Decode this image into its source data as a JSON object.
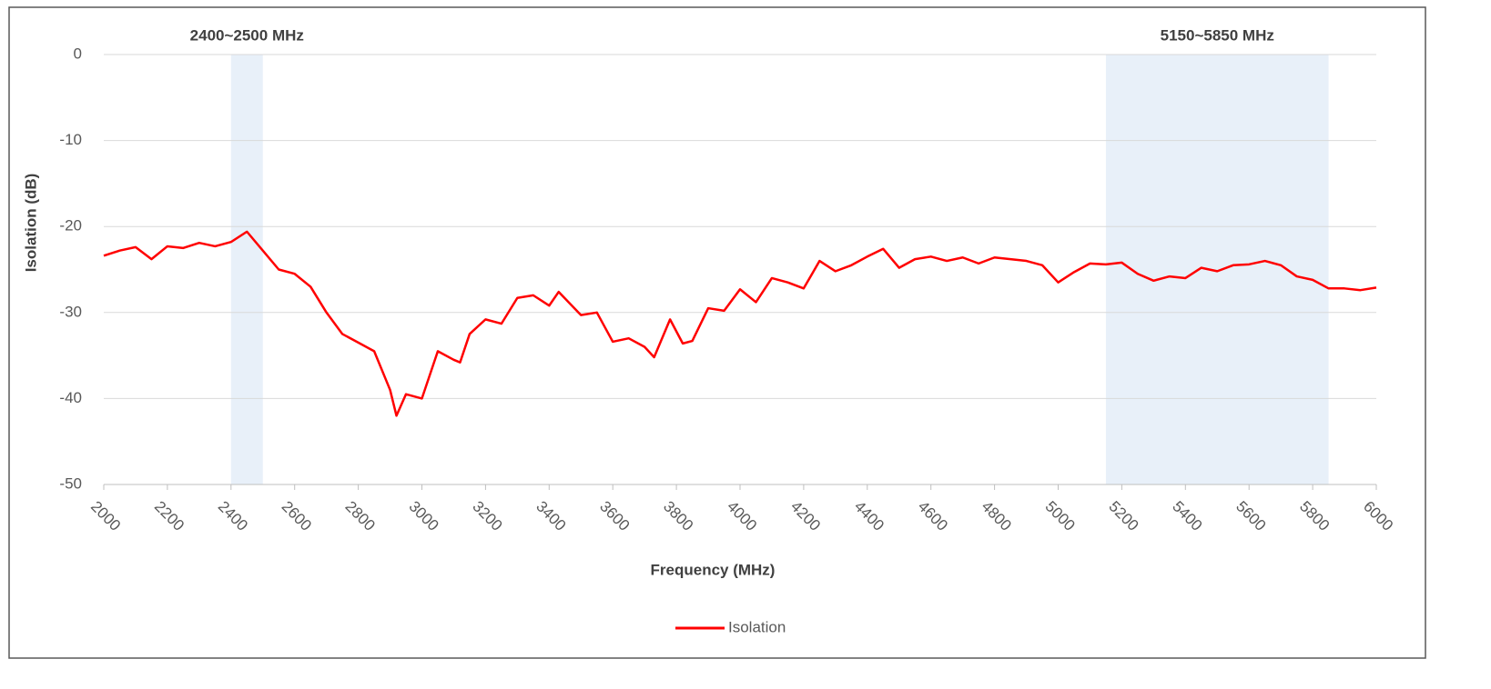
{
  "chart_data": {
    "type": "line",
    "x_label": "Frequency (MHz)",
    "y_label": "Isolation (dB)",
    "xlim": [
      2000,
      6000
    ],
    "xticks": [
      2000,
      2200,
      2400,
      2600,
      2800,
      3000,
      3200,
      3400,
      3600,
      3800,
      4000,
      4200,
      4400,
      4600,
      4800,
      5000,
      5200,
      5400,
      5600,
      5800,
      6000
    ],
    "ylim": [
      -50,
      0
    ],
    "yticks": [
      -50,
      -40,
      -30,
      -20,
      -10,
      0
    ],
    "grid": true,
    "legend": "bottom",
    "highlight_bands": [
      {
        "label": "2400~2500 MHz",
        "range": [
          2400,
          2500
        ],
        "color": "#e8f0f9"
      },
      {
        "label": "5150~5850 MHz",
        "range": [
          5150,
          5850
        ],
        "color": "#e8f0f9"
      }
    ],
    "x": [
      2000,
      2050,
      2100,
      2150,
      2200,
      2250,
      2300,
      2350,
      2400,
      2450,
      2500,
      2550,
      2600,
      2650,
      2700,
      2750,
      2800,
      2850,
      2900,
      2920,
      2950,
      3000,
      3050,
      3100,
      3120,
      3150,
      3200,
      3250,
      3300,
      3350,
      3400,
      3430,
      3500,
      3550,
      3600,
      3650,
      3700,
      3730,
      3780,
      3820,
      3850,
      3900,
      3950,
      4000,
      4050,
      4100,
      4150,
      4200,
      4250,
      4300,
      4350,
      4400,
      4450,
      4500,
      4550,
      4600,
      4650,
      4700,
      4750,
      4800,
      4850,
      4900,
      4950,
      5000,
      5050,
      5100,
      5150,
      5200,
      5250,
      5300,
      5350,
      5400,
      5450,
      5500,
      5550,
      5600,
      5650,
      5700,
      5750,
      5800,
      5850,
      5900,
      5950,
      6000
    ],
    "series": [
      {
        "name": "Isolation",
        "color": "#ff0000",
        "values": [
          -23.4,
          -22.8,
          -22.4,
          -23.8,
          -22.3,
          -22.5,
          -21.9,
          -22.3,
          -21.8,
          -20.6,
          -22.8,
          -25,
          -25.5,
          -27,
          -30,
          -32.5,
          -33.5,
          -34.5,
          -39,
          -42,
          -39.5,
          -40,
          -34.5,
          -35.5,
          -35.8,
          -32.5,
          -30.8,
          -31.3,
          -28.3,
          -28,
          -29.2,
          -27.6,
          -30.3,
          -30,
          -33.4,
          -33,
          -34,
          -35.2,
          -30.8,
          -33.6,
          -33.3,
          -29.5,
          -29.8,
          -27.3,
          -28.8,
          -26,
          -26.5,
          -27.2,
          -24,
          -25.2,
          -24.5,
          -23.5,
          -22.6,
          -24.8,
          -23.8,
          -23.5,
          -24,
          -23.6,
          -24.3,
          -23.6,
          -23.8,
          -24,
          -24.5,
          -26.5,
          -25.3,
          -24.3,
          -24.4,
          -24.2,
          -25.5,
          -26.3,
          -25.8,
          -26,
          -24.8,
          -25.2,
          -24.5,
          -24.4,
          -24,
          -24.5,
          -25.8,
          -26.2,
          -27.2,
          -27.2,
          -27.4,
          -27.1
        ]
      }
    ]
  }
}
